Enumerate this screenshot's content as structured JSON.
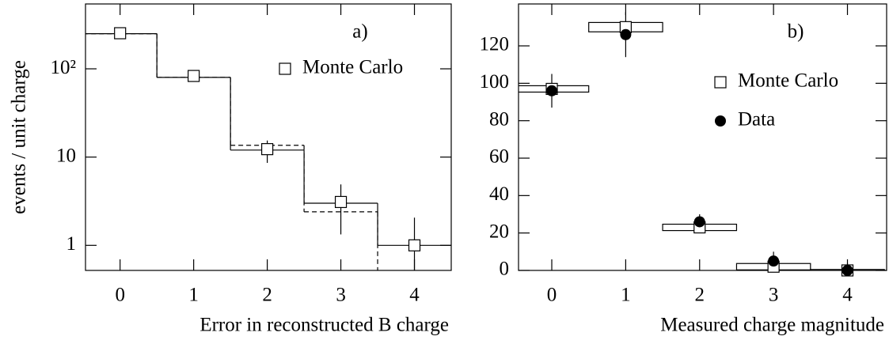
{
  "chart_data": [
    {
      "type": "step",
      "annotation": "a)",
      "log_y": true,
      "ylabel": "events / unit charge",
      "xlabel": "Error in reconstructed B charge",
      "x": [
        0,
        1,
        2,
        3,
        4
      ],
      "xlim": [
        -0.47,
        4.5
      ],
      "xticks": [
        0,
        1,
        2,
        3,
        4
      ],
      "ylim": [
        0.52,
        543
      ],
      "yticks": [
        1,
        10,
        {
          "value": 100,
          "label": "10²"
        }
      ],
      "legend": "upper right",
      "series": [
        {
          "name": "Monte Carlo",
          "color": "#000000",
          "marker": "square",
          "values": [
            253,
            83,
            12.3,
            3.1,
            1
          ],
          "err_low": [
            null,
            null,
            8.6,
            1.33,
            0.52
          ],
          "err_high": [
            null,
            null,
            15.4,
            4.9,
            2.06
          ]
        }
      ],
      "steps": [
        {
          "style": "solid",
          "color": "#000000",
          "values": [
            250,
            80,
            12,
            3,
            1
          ]
        },
        {
          "style": "dashed",
          "color": "#000000",
          "values": [
            250,
            80,
            13.6,
            2.4,
            0
          ]
        }
      ]
    },
    {
      "type": "points",
      "annotation": "b)",
      "xlabel": "Measured charge magnitude",
      "x": [
        0,
        1,
        2,
        3,
        4
      ],
      "xlim": [
        -0.45,
        4.53
      ],
      "xticks": [
        0,
        1,
        2,
        3,
        4
      ],
      "ylim": [
        0,
        142.4
      ],
      "yticks": [
        0,
        20,
        40,
        60,
        80,
        100,
        120
      ],
      "legend": "upper right",
      "series": [
        {
          "name": "Monte Carlo",
          "color": "#000000",
          "marker": "square",
          "values": [
            97,
            130,
            23,
            2,
            0
          ],
          "errors": [
            1.7,
            2.5,
            1.7,
            1.7,
            0.5
          ]
        },
        {
          "name": "Data",
          "color": "#000000",
          "marker": "circle",
          "values": [
            96,
            126,
            26,
            5,
            0
          ],
          "errors": [
            9,
            12,
            4,
            5,
            4
          ]
        }
      ]
    }
  ]
}
